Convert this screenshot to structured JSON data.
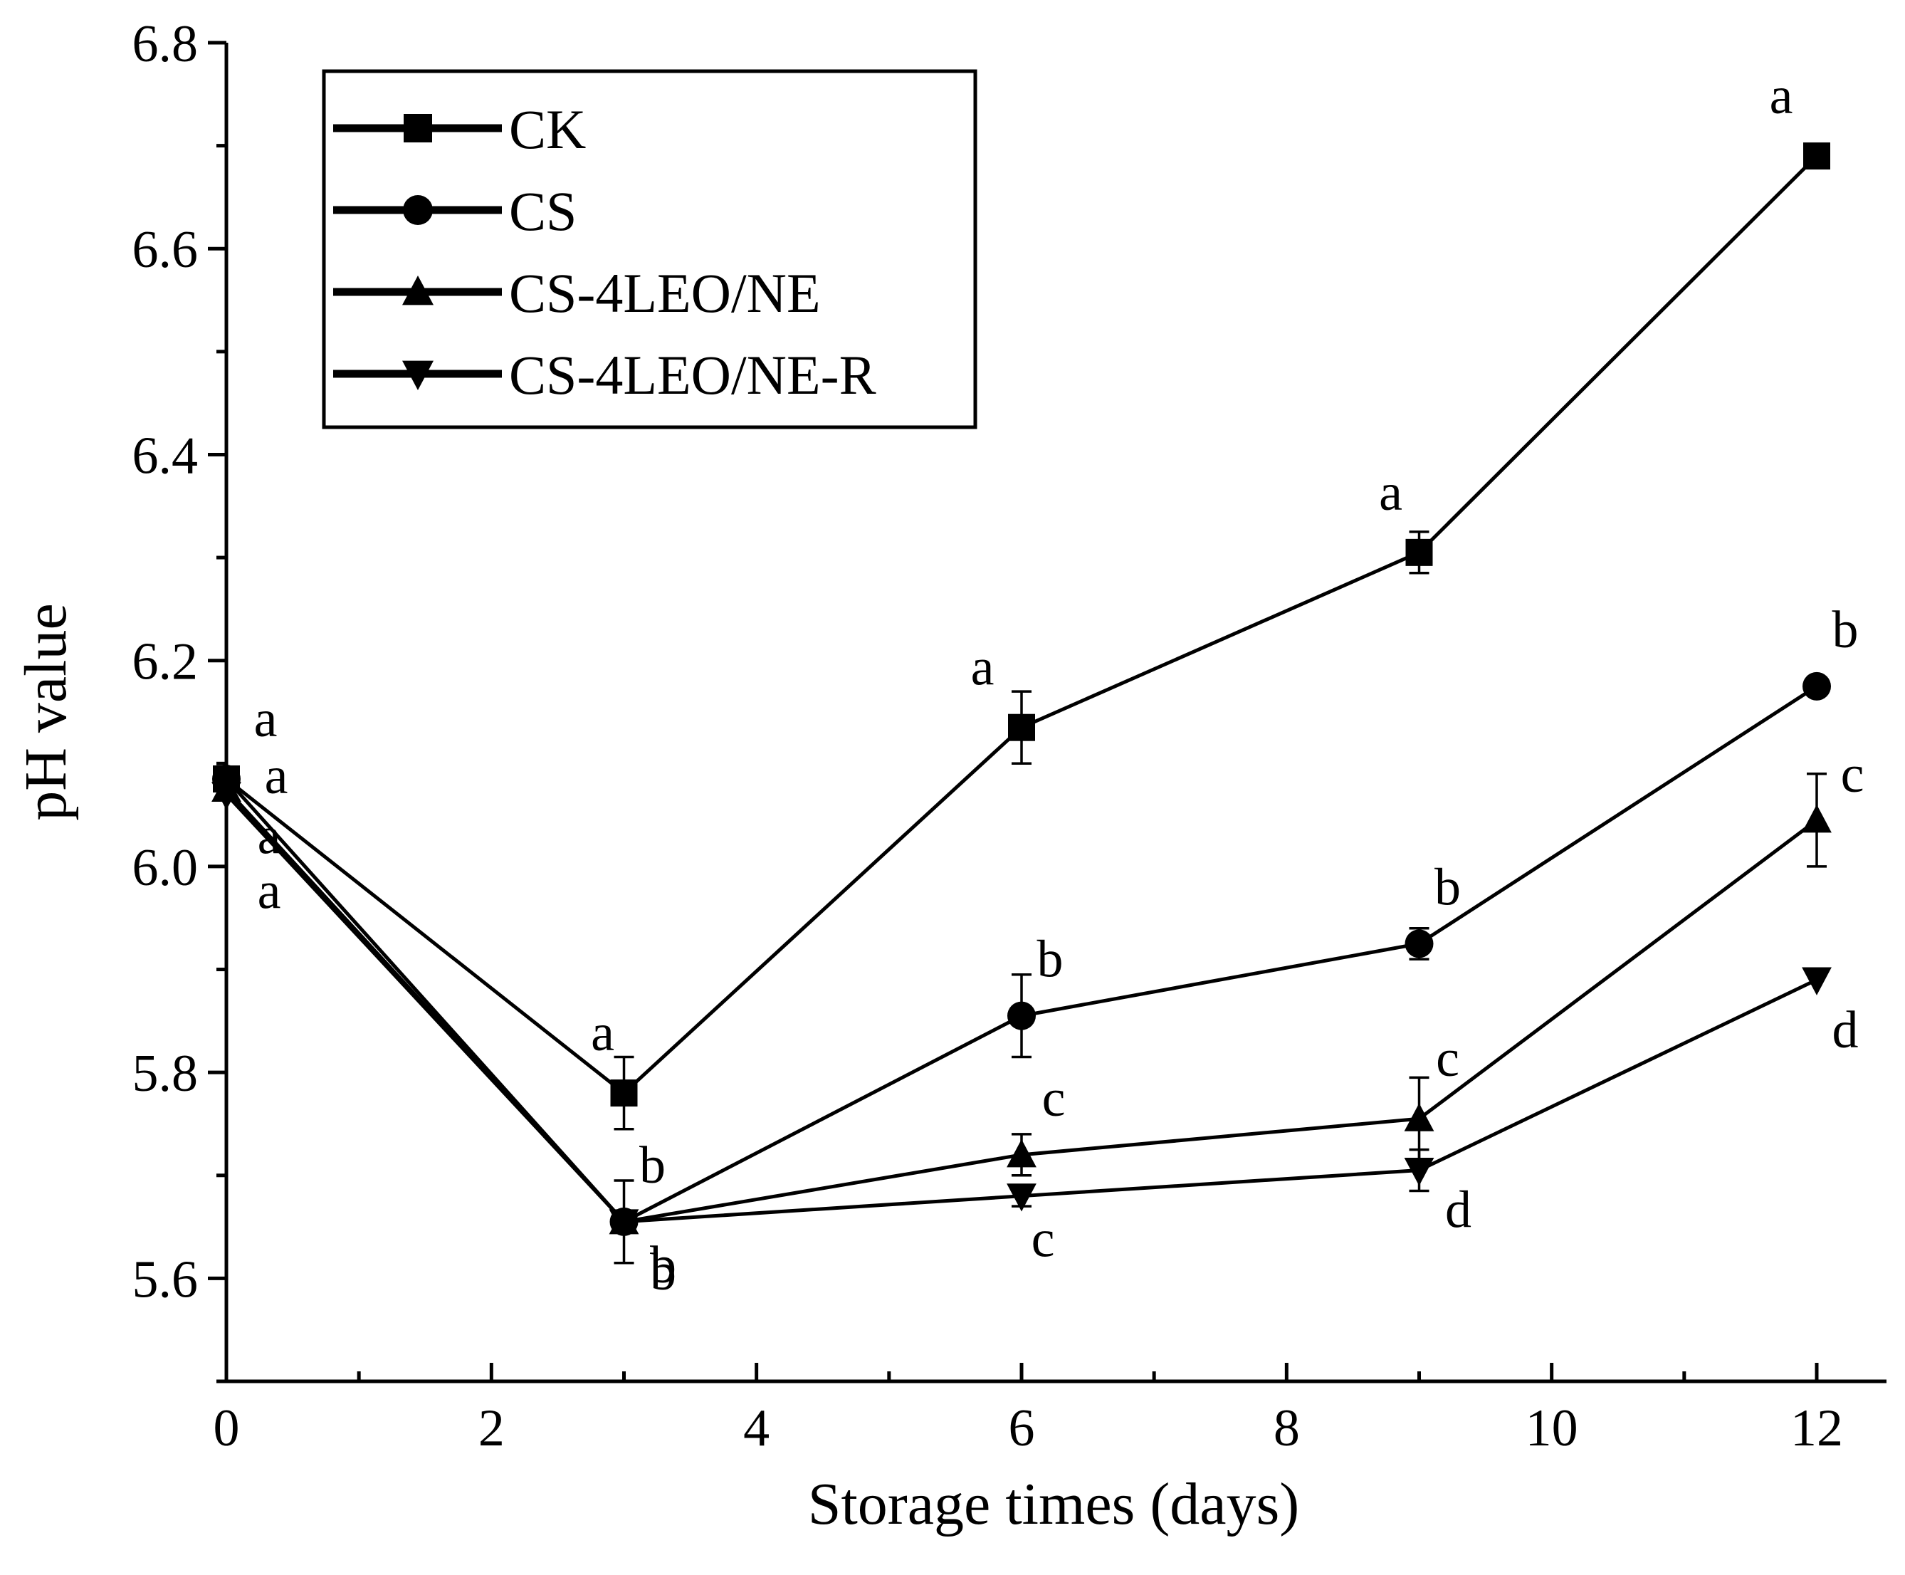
{
  "chart_data": {
    "type": "line",
    "title": "",
    "xlabel": "Storage times (days)",
    "ylabel": "pH value",
    "xlim": [
      0,
      13
    ],
    "ylim": [
      5.5,
      6.8
    ],
    "x_ticks": [
      0,
      2,
      4,
      6,
      8,
      10,
      12
    ],
    "y_ticks": [
      5.6,
      5.8,
      6.0,
      6.2,
      6.4,
      6.6,
      6.8
    ],
    "x_tick_labels": [
      "0",
      "2",
      "4",
      "6",
      "8",
      "10",
      "12"
    ],
    "y_tick_labels": [
      "5.6",
      "5.8",
      "6.0",
      "6.2",
      "6.4",
      "6.6",
      "6.8"
    ],
    "legend_position": "top-left",
    "x": [
      0,
      3,
      6,
      9,
      12
    ],
    "series": [
      {
        "name": "CK",
        "marker": "square",
        "values": [
          6.085,
          5.78,
          6.135,
          6.305,
          6.69
        ],
        "errors": [
          0.0,
          0.035,
          0.035,
          0.02,
          0.005
        ],
        "labels": [
          "a",
          "a",
          "a",
          "a",
          "a"
        ]
      },
      {
        "name": "CS",
        "marker": "circle",
        "values": [
          6.085,
          5.655,
          5.855,
          5.925,
          6.175
        ],
        "errors": [
          0.0,
          0.0,
          0.04,
          0.015,
          0.0
        ],
        "labels": [
          "a",
          "b",
          "b",
          "b",
          "b"
        ]
      },
      {
        "name": "CS-4LEO/NE",
        "marker": "triangle-up",
        "values": [
          6.075,
          5.655,
          5.72,
          5.755,
          6.045
        ],
        "errors": [
          0.0,
          0.04,
          0.02,
          0.04,
          0.045
        ],
        "labels": [
          "a",
          "b",
          "c",
          "c",
          "c"
        ]
      },
      {
        "name": "CS-4LEO/NE-R",
        "marker": "triangle-down",
        "values": [
          6.07,
          5.655,
          5.68,
          5.705,
          5.89
        ],
        "errors": [
          0.0,
          0.0,
          0.01,
          0.02,
          0.0
        ],
        "labels": [
          "a",
          "b",
          "c",
          "d",
          "d"
        ]
      }
    ]
  }
}
